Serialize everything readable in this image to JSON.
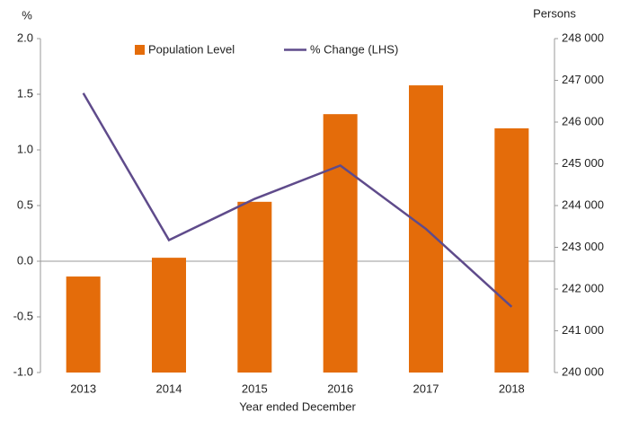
{
  "chart_data": {
    "type": "bar",
    "ylabel": "%",
    "y2label": "Persons",
    "xlabel": "Year ended December",
    "categories": [
      "2013",
      "2014",
      "2015",
      "2016",
      "2017",
      "2018"
    ],
    "series": [
      {
        "name": "Population Level",
        "type": "bar",
        "axis": "y2",
        "color": "#e46c0a",
        "values": [
          242300,
          242750,
          244090,
          246190,
          246880,
          245850
        ]
      },
      {
        "name": "% Change (LHS)",
        "type": "line",
        "color": "#5f4b8b",
        "values": [
          1.51,
          0.19,
          0.56,
          0.86,
          0.29,
          -0.41
        ]
      }
    ],
    "ylim": [
      -1.0,
      2.0
    ],
    "yticks": [
      {
        "value": -1.0,
        "label": "-1.0"
      },
      -0.5,
      {
        "value": 0,
        "label": "0.0"
      },
      0.5,
      {
        "value": 1.0,
        "label": "1.0"
      },
      1.5,
      {
        "value": 2.0,
        "label": "2.0"
      }
    ],
    "y2lim": [
      240000,
      248000
    ],
    "y2ticks": [
      {
        "value": 240000,
        "label": "240 000"
      },
      {
        "value": 241000,
        "label": "241 000"
      },
      {
        "value": 242000,
        "label": "242 000"
      },
      {
        "value": 243000,
        "label": "243 000"
      },
      {
        "value": 244000,
        "label": "244 000"
      },
      {
        "value": 245000,
        "label": "245 000"
      },
      {
        "value": 246000,
        "label": "246 000"
      },
      {
        "value": 247000,
        "label": "247 000"
      },
      {
        "value": 248000,
        "label": "248 000"
      }
    ],
    "grid": false,
    "legend": "top"
  }
}
